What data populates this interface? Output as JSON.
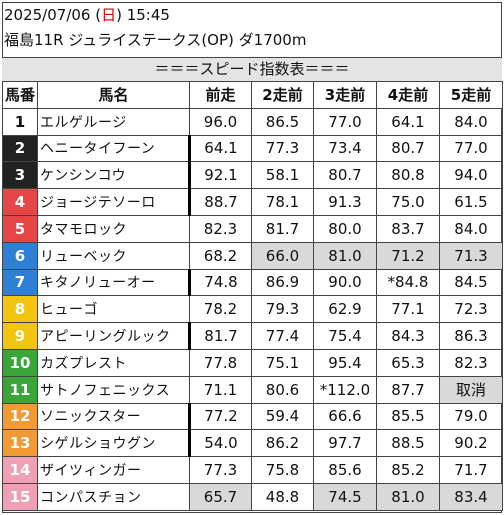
{
  "header": {
    "datetime_prefix": "2025/07/06 (",
    "day": "日",
    "datetime_suffix": ") 15:45",
    "race": "福島11R ジュライステークス(OP) ダ1700m"
  },
  "banner": "＝＝＝スピード指数表＝＝＝",
  "columns": [
    "馬番",
    "馬名",
    "前走",
    "2走前",
    "3走前",
    "4走前",
    "5走前"
  ],
  "rows": [
    {
      "num": "1",
      "name": "エルゲルージ",
      "v": [
        "96.0",
        "86.5",
        "77.0",
        "64.1",
        "84.0"
      ],
      "gray": [
        false,
        false,
        false,
        false,
        false
      ],
      "bar": false
    },
    {
      "num": "2",
      "name": "ヘニータイフーン",
      "v": [
        "64.1",
        "77.3",
        "73.4",
        "80.7",
        "77.0"
      ],
      "gray": [
        false,
        false,
        false,
        false,
        false
      ],
      "bar": true
    },
    {
      "num": "3",
      "name": "ケンシンコウ",
      "v": [
        "92.1",
        "58.1",
        "80.7",
        "80.8",
        "94.0"
      ],
      "gray": [
        false,
        false,
        false,
        false,
        false
      ],
      "bar": true
    },
    {
      "num": "4",
      "name": "ジョージテソーロ",
      "v": [
        "88.7",
        "78.1",
        "91.3",
        "75.0",
        "61.5"
      ],
      "gray": [
        false,
        false,
        false,
        false,
        false
      ],
      "bar": true
    },
    {
      "num": "5",
      "name": "タマモロック",
      "v": [
        "82.3",
        "81.7",
        "80.0",
        "83.7",
        "84.0"
      ],
      "gray": [
        false,
        false,
        false,
        false,
        false
      ],
      "bar": false
    },
    {
      "num": "6",
      "name": "リューベック",
      "v": [
        "68.2",
        "66.0",
        "81.0",
        "71.2",
        "71.3"
      ],
      "gray": [
        false,
        true,
        true,
        true,
        true
      ],
      "bar": false
    },
    {
      "num": "7",
      "name": "キタノリューオー",
      "v": [
        "74.8",
        "86.9",
        "90.0",
        "*84.8",
        "84.5"
      ],
      "gray": [
        false,
        false,
        false,
        false,
        false
      ],
      "bar": true
    },
    {
      "num": "8",
      "name": "ヒューゴ",
      "v": [
        "78.2",
        "79.3",
        "62.9",
        "77.1",
        "72.3"
      ],
      "gray": [
        false,
        false,
        false,
        false,
        false
      ],
      "bar": false
    },
    {
      "num": "9",
      "name": "アピーリングルック",
      "v": [
        "81.7",
        "77.4",
        "75.4",
        "84.3",
        "86.3"
      ],
      "gray": [
        false,
        false,
        false,
        false,
        false
      ],
      "bar": true
    },
    {
      "num": "10",
      "name": "カズプレスト",
      "v": [
        "77.8",
        "75.1",
        "95.4",
        "65.3",
        "82.3"
      ],
      "gray": [
        false,
        false,
        false,
        false,
        false
      ],
      "bar": false
    },
    {
      "num": "11",
      "name": "サトノフェニックス",
      "v": [
        "71.1",
        "80.6",
        "*112.0",
        "87.7",
        "取消"
      ],
      "gray": [
        false,
        false,
        false,
        false,
        true
      ],
      "bar": false
    },
    {
      "num": "12",
      "name": "ソニックスター",
      "v": [
        "77.2",
        "59.4",
        "66.6",
        "85.5",
        "79.0"
      ],
      "gray": [
        false,
        false,
        false,
        false,
        false
      ],
      "bar": true
    },
    {
      "num": "13",
      "name": "シゲルショウグン",
      "v": [
        "54.0",
        "86.2",
        "97.7",
        "88.5",
        "90.2"
      ],
      "gray": [
        false,
        false,
        false,
        false,
        false
      ],
      "bar": true
    },
    {
      "num": "14",
      "name": "ザイツィンガー",
      "v": [
        "77.3",
        "75.8",
        "85.6",
        "85.2",
        "71.7"
      ],
      "gray": [
        false,
        false,
        false,
        false,
        false
      ],
      "bar": false
    },
    {
      "num": "15",
      "name": "コンパスチョン",
      "v": [
        "65.7",
        "48.8",
        "74.5",
        "81.0",
        "83.4"
      ],
      "gray": [
        true,
        false,
        true,
        true,
        true
      ],
      "bar": false
    }
  ]
}
